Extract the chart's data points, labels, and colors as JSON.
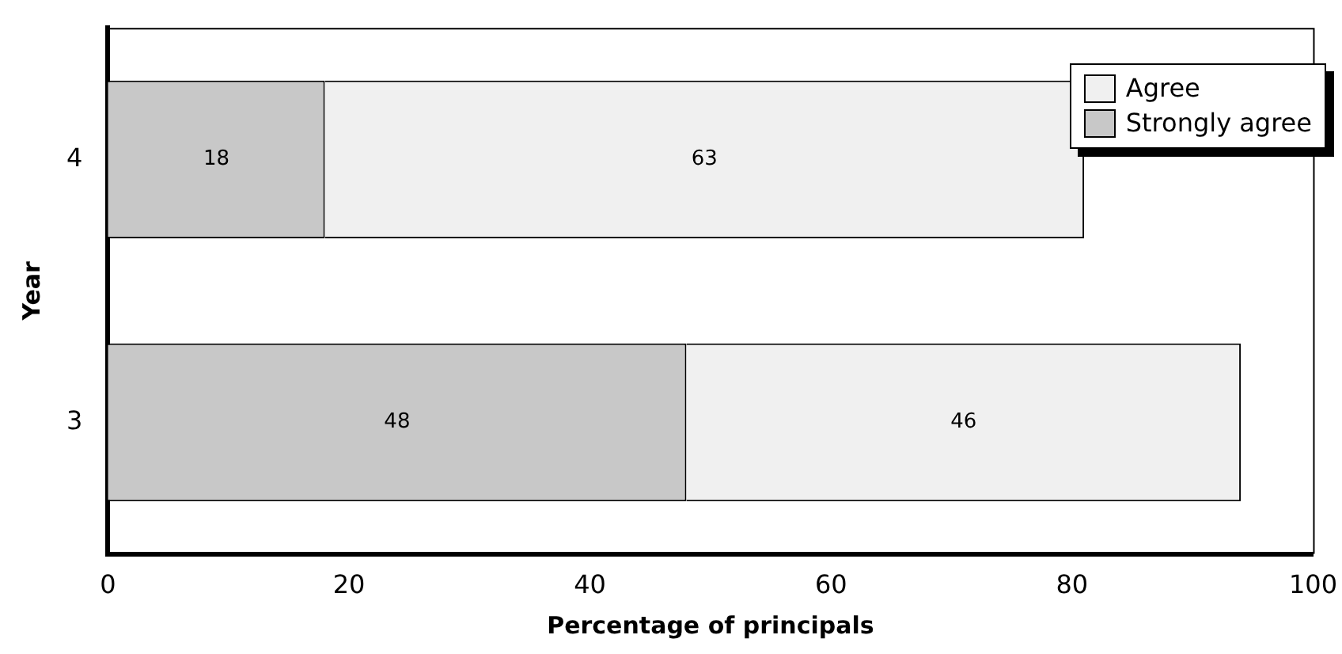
{
  "chart_data": {
    "type": "bar",
    "orientation": "horizontal",
    "stacked": true,
    "data_labels": true,
    "xlabel": "Percentage of principals",
    "ylabel": "Year",
    "categories": [
      "4",
      "3"
    ],
    "series": [
      {
        "name": "Strongly agree",
        "color": "#c8c8c8",
        "values": [
          18,
          48
        ]
      },
      {
        "name": "Agree",
        "color": "#f0f0f0",
        "values": [
          63,
          46
        ]
      }
    ],
    "xlim": [
      0,
      100
    ],
    "xticks": [
      0,
      20,
      40,
      60,
      80,
      100
    ],
    "grid": false,
    "legend": "top right"
  }
}
